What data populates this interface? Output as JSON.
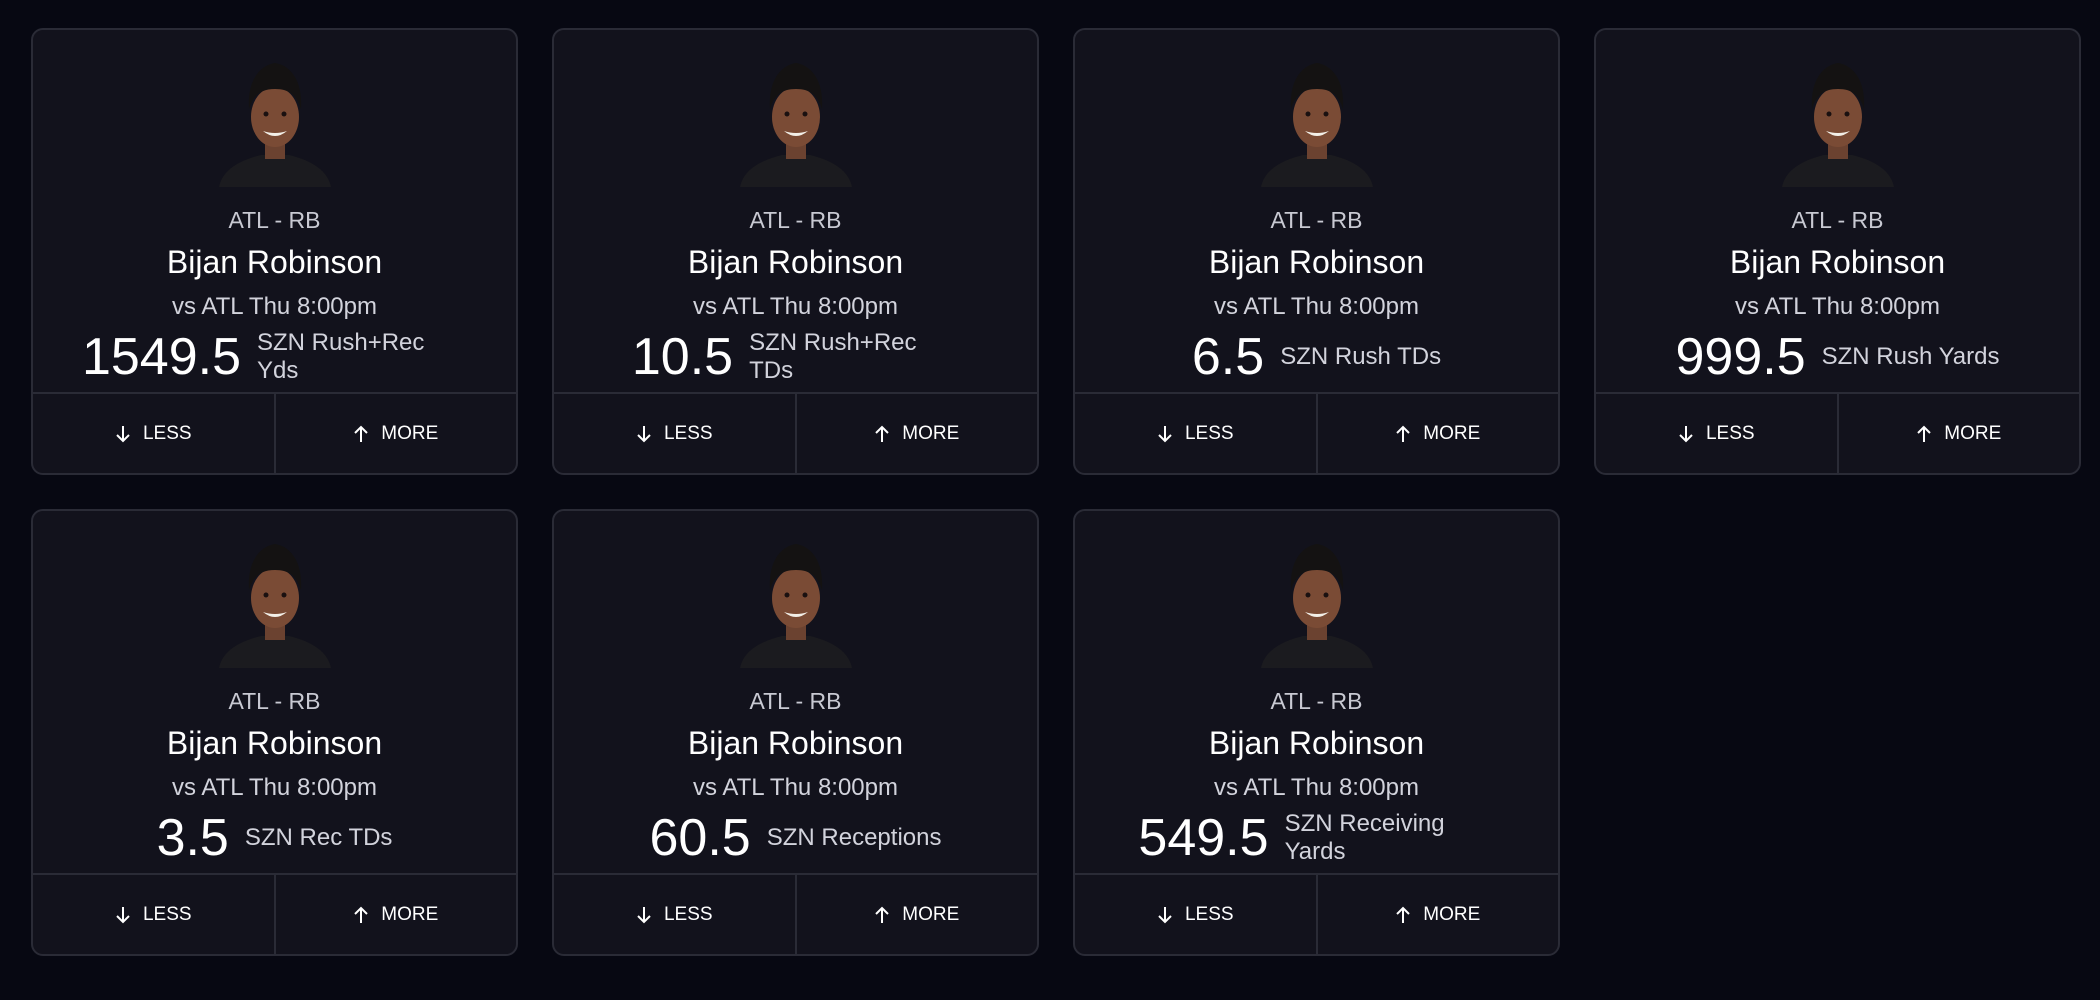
{
  "cards": [
    {
      "team": "ATL - RB",
      "name": "Bijan Robinson",
      "matchup": "vs ATL Thu 8:00pm",
      "line": 1549.5,
      "stat": "SZN Rush+Rec Yds",
      "less": "LESS",
      "more": "MORE"
    },
    {
      "team": "ATL - RB",
      "name": "Bijan Robinson",
      "matchup": "vs ATL Thu 8:00pm",
      "line": 10.5,
      "stat": "SZN Rush+Rec TDs",
      "less": "LESS",
      "more": "MORE"
    },
    {
      "team": "ATL - RB",
      "name": "Bijan Robinson",
      "matchup": "vs ATL Thu 8:00pm",
      "line": 6.5,
      "stat": "SZN Rush TDs",
      "less": "LESS",
      "more": "MORE"
    },
    {
      "team": "ATL - RB",
      "name": "Bijan Robinson",
      "matchup": "vs ATL Thu 8:00pm",
      "line": 999.5,
      "stat": "SZN Rush Yards",
      "less": "LESS",
      "more": "MORE"
    },
    {
      "team": "ATL - RB",
      "name": "Bijan Robinson",
      "matchup": "vs ATL Thu 8:00pm",
      "line": 3.5,
      "stat": "SZN Rec TDs",
      "less": "LESS",
      "more": "MORE"
    },
    {
      "team": "ATL - RB",
      "name": "Bijan Robinson",
      "matchup": "vs ATL Thu 8:00pm",
      "line": 60.5,
      "stat": "SZN Receptions",
      "less": "LESS",
      "more": "MORE"
    },
    {
      "team": "ATL - RB",
      "name": "Bijan Robinson",
      "matchup": "vs ATL Thu 8:00pm",
      "line": 549.5,
      "stat": "SZN Receiving Yards",
      "less": "LESS",
      "more": "MORE"
    }
  ]
}
